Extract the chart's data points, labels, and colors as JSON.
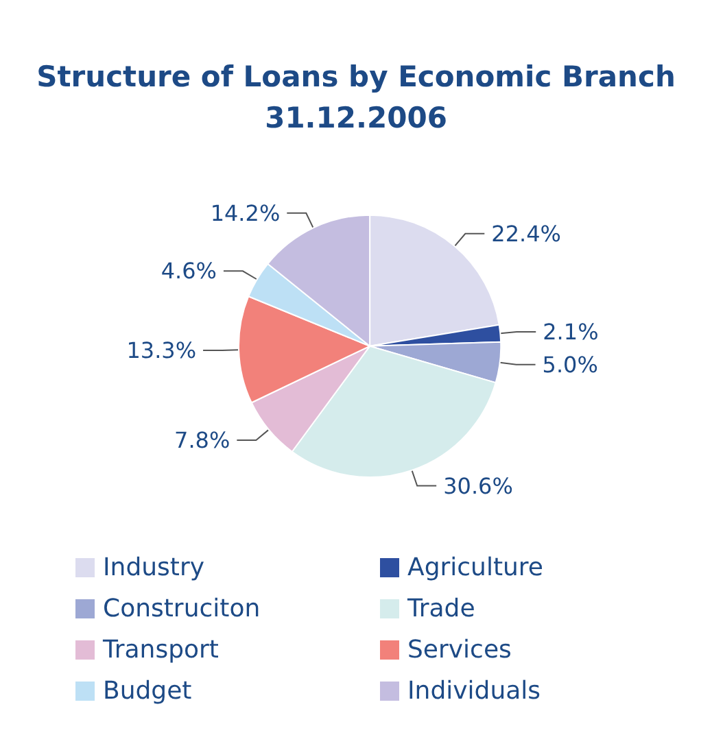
{
  "chart_data": {
    "type": "pie",
    "title": "Structure of Loans by Economic Branch\n31.12.2006",
    "categories": [
      "Industry",
      "Agriculture",
      "Construciton",
      "Trade",
      "Transport",
      "Services",
      "Budget",
      "Individuals"
    ],
    "values": [
      22.4,
      2.1,
      5.0,
      30.6,
      7.8,
      13.3,
      4.6,
      14.2
    ],
    "value_labels": [
      "22.4%",
      "2.1%",
      "5.0%",
      "30.6%",
      "7.8%",
      "13.3%",
      "4.6%",
      "14.2%"
    ],
    "colors": [
      "#dcdcef",
      "#2e4fa0",
      "#9da8d4",
      "#d5ecec",
      "#e3bcd6",
      "#f2817a",
      "#bde0f5",
      "#c4bde0"
    ],
    "legend": "bottom"
  }
}
